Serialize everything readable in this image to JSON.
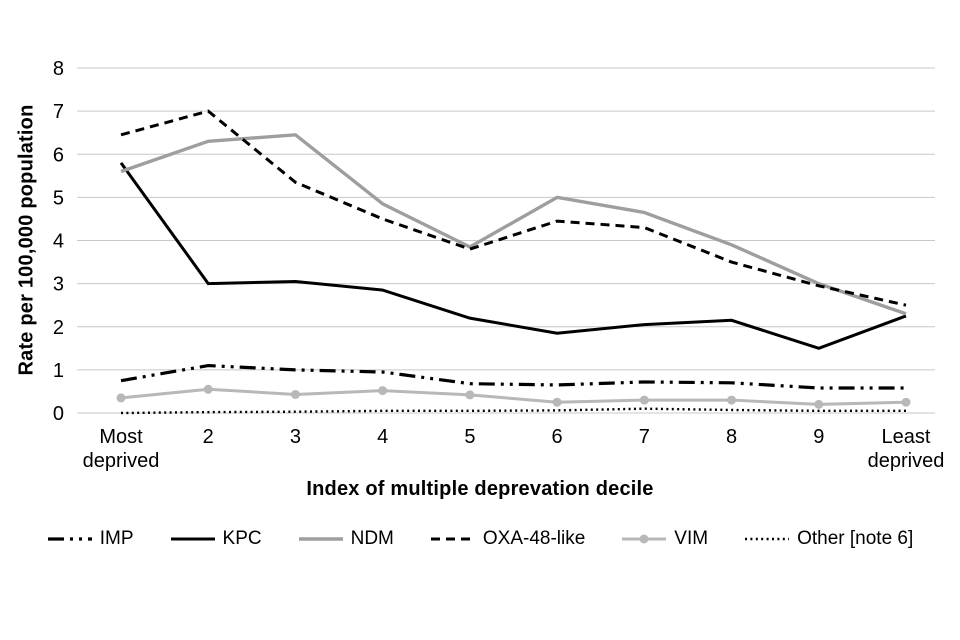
{
  "chart_data": {
    "type": "line",
    "title": "",
    "xlabel": "Index of multiple deprevation decile",
    "ylabel": "Rate per 100,000 population",
    "categories": [
      "Most deprived",
      "2",
      "3",
      "4",
      "5",
      "6",
      "7",
      "8",
      "9",
      "Least deprived"
    ],
    "ylim": [
      0,
      8
    ],
    "yticks": [
      0,
      1,
      2,
      3,
      4,
      5,
      6,
      7,
      8
    ],
    "grid": "horizontal",
    "legend_position": "bottom",
    "series": [
      {
        "name": "IMP",
        "style": "dashdotdot",
        "color": "#000000",
        "width": 3.2,
        "marker": "none",
        "values": [
          0.75,
          1.1,
          1.0,
          0.95,
          0.68,
          0.65,
          0.72,
          0.7,
          0.58,
          0.58
        ]
      },
      {
        "name": "KPC",
        "style": "solid",
        "color": "#000000",
        "width": 3.0,
        "marker": "none",
        "values": [
          5.8,
          3.0,
          3.05,
          2.85,
          2.2,
          1.85,
          2.05,
          2.15,
          1.5,
          2.25
        ]
      },
      {
        "name": "NDM",
        "style": "solid",
        "color": "#9e9e9e",
        "width": 3.4,
        "marker": "none",
        "values": [
          5.6,
          6.3,
          6.45,
          4.85,
          3.85,
          5.0,
          4.65,
          3.9,
          3.0,
          2.3
        ]
      },
      {
        "name": "OXA-48-like",
        "style": "dashed",
        "color": "#000000",
        "width": 3.0,
        "marker": "none",
        "values": [
          6.45,
          7.0,
          5.35,
          4.5,
          3.8,
          4.45,
          4.3,
          3.5,
          2.95,
          2.5
        ]
      },
      {
        "name": "VIM",
        "style": "solid",
        "color": "#b8b8b8",
        "width": 3.0,
        "marker": "circle",
        "values": [
          0.35,
          0.55,
          0.43,
          0.52,
          0.42,
          0.25,
          0.3,
          0.3,
          0.2,
          0.25
        ]
      },
      {
        "name": "Other [note 6]",
        "style": "dotted",
        "color": "#000000",
        "width": 2.4,
        "marker": "none",
        "values": [
          0.0,
          0.02,
          0.03,
          0.05,
          0.05,
          0.06,
          0.1,
          0.07,
          0.05,
          0.05
        ]
      }
    ]
  },
  "colors": {
    "background": "#ffffff",
    "gridline": "#c8c8c8",
    "text": "#000000"
  }
}
